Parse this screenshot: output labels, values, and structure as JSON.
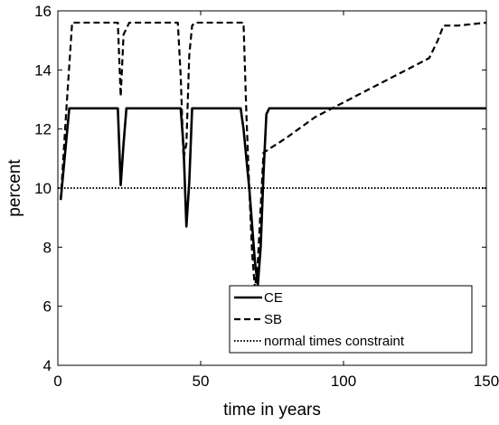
{
  "chart_data": {
    "type": "line",
    "title": "",
    "xlabel": "time in years",
    "ylabel": "percent",
    "xlim": [
      0,
      150
    ],
    "ylim": [
      4,
      16
    ],
    "xticks": [
      0,
      50,
      100,
      150
    ],
    "yticks": [
      4,
      6,
      8,
      10,
      12,
      14,
      16
    ],
    "grid": false,
    "legend_position": "bottom-center",
    "series": [
      {
        "name": "CE",
        "style": "solid",
        "color": "#000000",
        "x": [
          1,
          4,
          21,
          22,
          23,
          24,
          43,
          44,
          45,
          46,
          47,
          48,
          64,
          65,
          67,
          69,
          70,
          71,
          72,
          73,
          74,
          150
        ],
        "y": [
          9.6,
          12.7,
          12.7,
          10.1,
          11.5,
          12.7,
          12.7,
          11.4,
          8.7,
          10.2,
          12.7,
          12.7,
          12.7,
          12.0,
          10.0,
          7.5,
          6.7,
          8.0,
          10.5,
          12.5,
          12.7,
          12.7
        ]
      },
      {
        "name": "SB",
        "style": "dashed",
        "color": "#000000",
        "x": [
          1,
          3,
          5,
          21,
          22,
          23,
          25,
          42,
          43,
          44,
          45,
          46,
          47,
          48,
          65,
          66,
          67,
          68,
          69,
          70,
          72,
          80,
          90,
          100,
          110,
          120,
          130,
          133,
          135,
          140,
          150
        ],
        "y": [
          9.6,
          12.7,
          15.6,
          15.6,
          13.1,
          15.2,
          15.6,
          15.6,
          13.8,
          11.0,
          11.5,
          14.5,
          15.5,
          15.6,
          15.6,
          12.5,
          10.0,
          7.8,
          6.6,
          7.5,
          11.2,
          11.7,
          12.4,
          12.9,
          13.4,
          13.9,
          14.4,
          15.0,
          15.5,
          15.5,
          15.6
        ]
      },
      {
        "name": "normal times constraint",
        "style": "dotted",
        "color": "#000000",
        "x": [
          0,
          150
        ],
        "y": [
          10,
          10
        ]
      }
    ]
  }
}
